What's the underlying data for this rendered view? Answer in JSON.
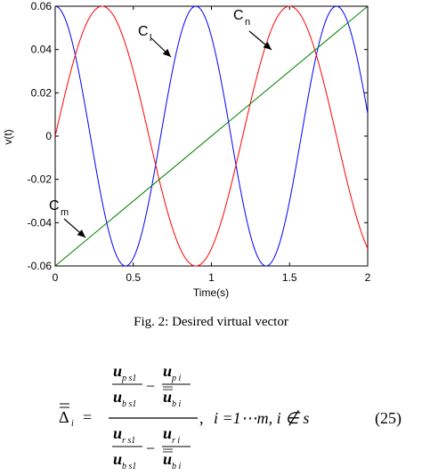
{
  "chart_data": {
    "type": "line",
    "title": "",
    "xlabel": "Time(s)",
    "ylabel": "v(t)",
    "xlim": [
      0,
      2
    ],
    "ylim": [
      -0.06,
      0.06
    ],
    "xticks": [
      "0",
      "0.5",
      "1",
      "1.5",
      "2"
    ],
    "yticks": [
      "0.06",
      "0.04",
      "0.02",
      "0",
      "-0.02",
      "-0.04",
      "-0.06"
    ],
    "grid": false,
    "series": [
      {
        "name": "C_l",
        "color": "#0000ff",
        "function": "0.06*cos(2*pi*t/0.9)"
      },
      {
        "name": "C_n",
        "color": "#ff0000",
        "function": "0.06*sin(2*pi*t/1.2)"
      },
      {
        "name": "C_m",
        "color": "#008000",
        "x": [
          0,
          2
        ],
        "y": [
          -0.06,
          0.06
        ]
      }
    ],
    "annotations": [
      {
        "label": "C",
        "sub": "l",
        "target_series": "C_l"
      },
      {
        "label": "C",
        "sub": "n",
        "target_series": "C_n"
      },
      {
        "label": "C",
        "sub": "m",
        "target_series": "C_m"
      }
    ]
  },
  "caption": "Fig. 2: Desired virtual vector",
  "equation": {
    "number": "(25)",
    "condition": "i =1⋯m, i ∉ s",
    "lhs_symbol": "Δ",
    "lhs_sub": "i",
    "num_a": "u",
    "num_a_sub": "p s1",
    "num_b": "u",
    "num_b_sub": "p i",
    "den_a": "u",
    "den_a_sub": "b s1",
    "den_b": "u",
    "den_b_sub": "b i",
    "num2_a": "u",
    "num2_a_sub": "r s1",
    "num2_b": "u",
    "num2_b_sub": "r i",
    "den2_a": "u",
    "den2_a_sub": "b s1",
    "den2_b": "u",
    "den2_b_sub": "b i"
  }
}
